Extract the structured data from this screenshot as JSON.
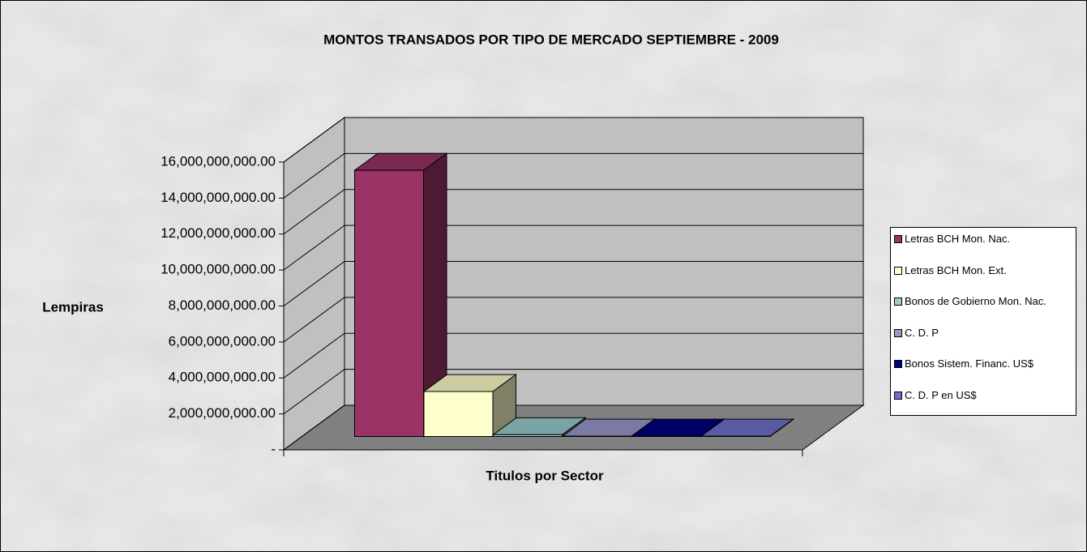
{
  "chart_data": {
    "type": "bar3d",
    "title": "MONTOS TRANSADOS POR TIPO DE MERCADO SEPTIEMBRE - 2009",
    "y_label": "Lempiras",
    "x_label": "Titulos por Sector",
    "categories": [
      "Letras BCH Mon. Nac.",
      "Letras BCH Mon. Ext.",
      "Bonos de Gobierno Mon. Nac.",
      "C. D. P",
      "Bonos Sistem. Financ. US$",
      "C. D. P en US$"
    ],
    "values": [
      14800000000,
      2500000000,
      100000000,
      20000000,
      20000000,
      20000000
    ],
    "colors": [
      "#993366",
      "#ffffcc",
      "#99cccc",
      "#9999cc",
      "#000080",
      "#7070cc"
    ],
    "ylim": [
      0,
      16000000000
    ],
    "yticks": [
      {
        "value": 0,
        "label": "-"
      },
      {
        "value": 2000000000,
        "label": "2,000,000,000.00"
      },
      {
        "value": 4000000000,
        "label": "4,000,000,000.00"
      },
      {
        "value": 6000000000,
        "label": "6,000,000,000.00"
      },
      {
        "value": 8000000000,
        "label": "8,000,000,000.00"
      },
      {
        "value": 10000000000,
        "label": "10,000,000,000.00"
      },
      {
        "value": 12000000000,
        "label": "12,000,000,000.00"
      },
      {
        "value": 14000000000,
        "label": "14,000,000,000.00"
      },
      {
        "value": 16000000000,
        "label": "16,000,000,000.00"
      }
    ],
    "grid": true,
    "legend": "right"
  }
}
